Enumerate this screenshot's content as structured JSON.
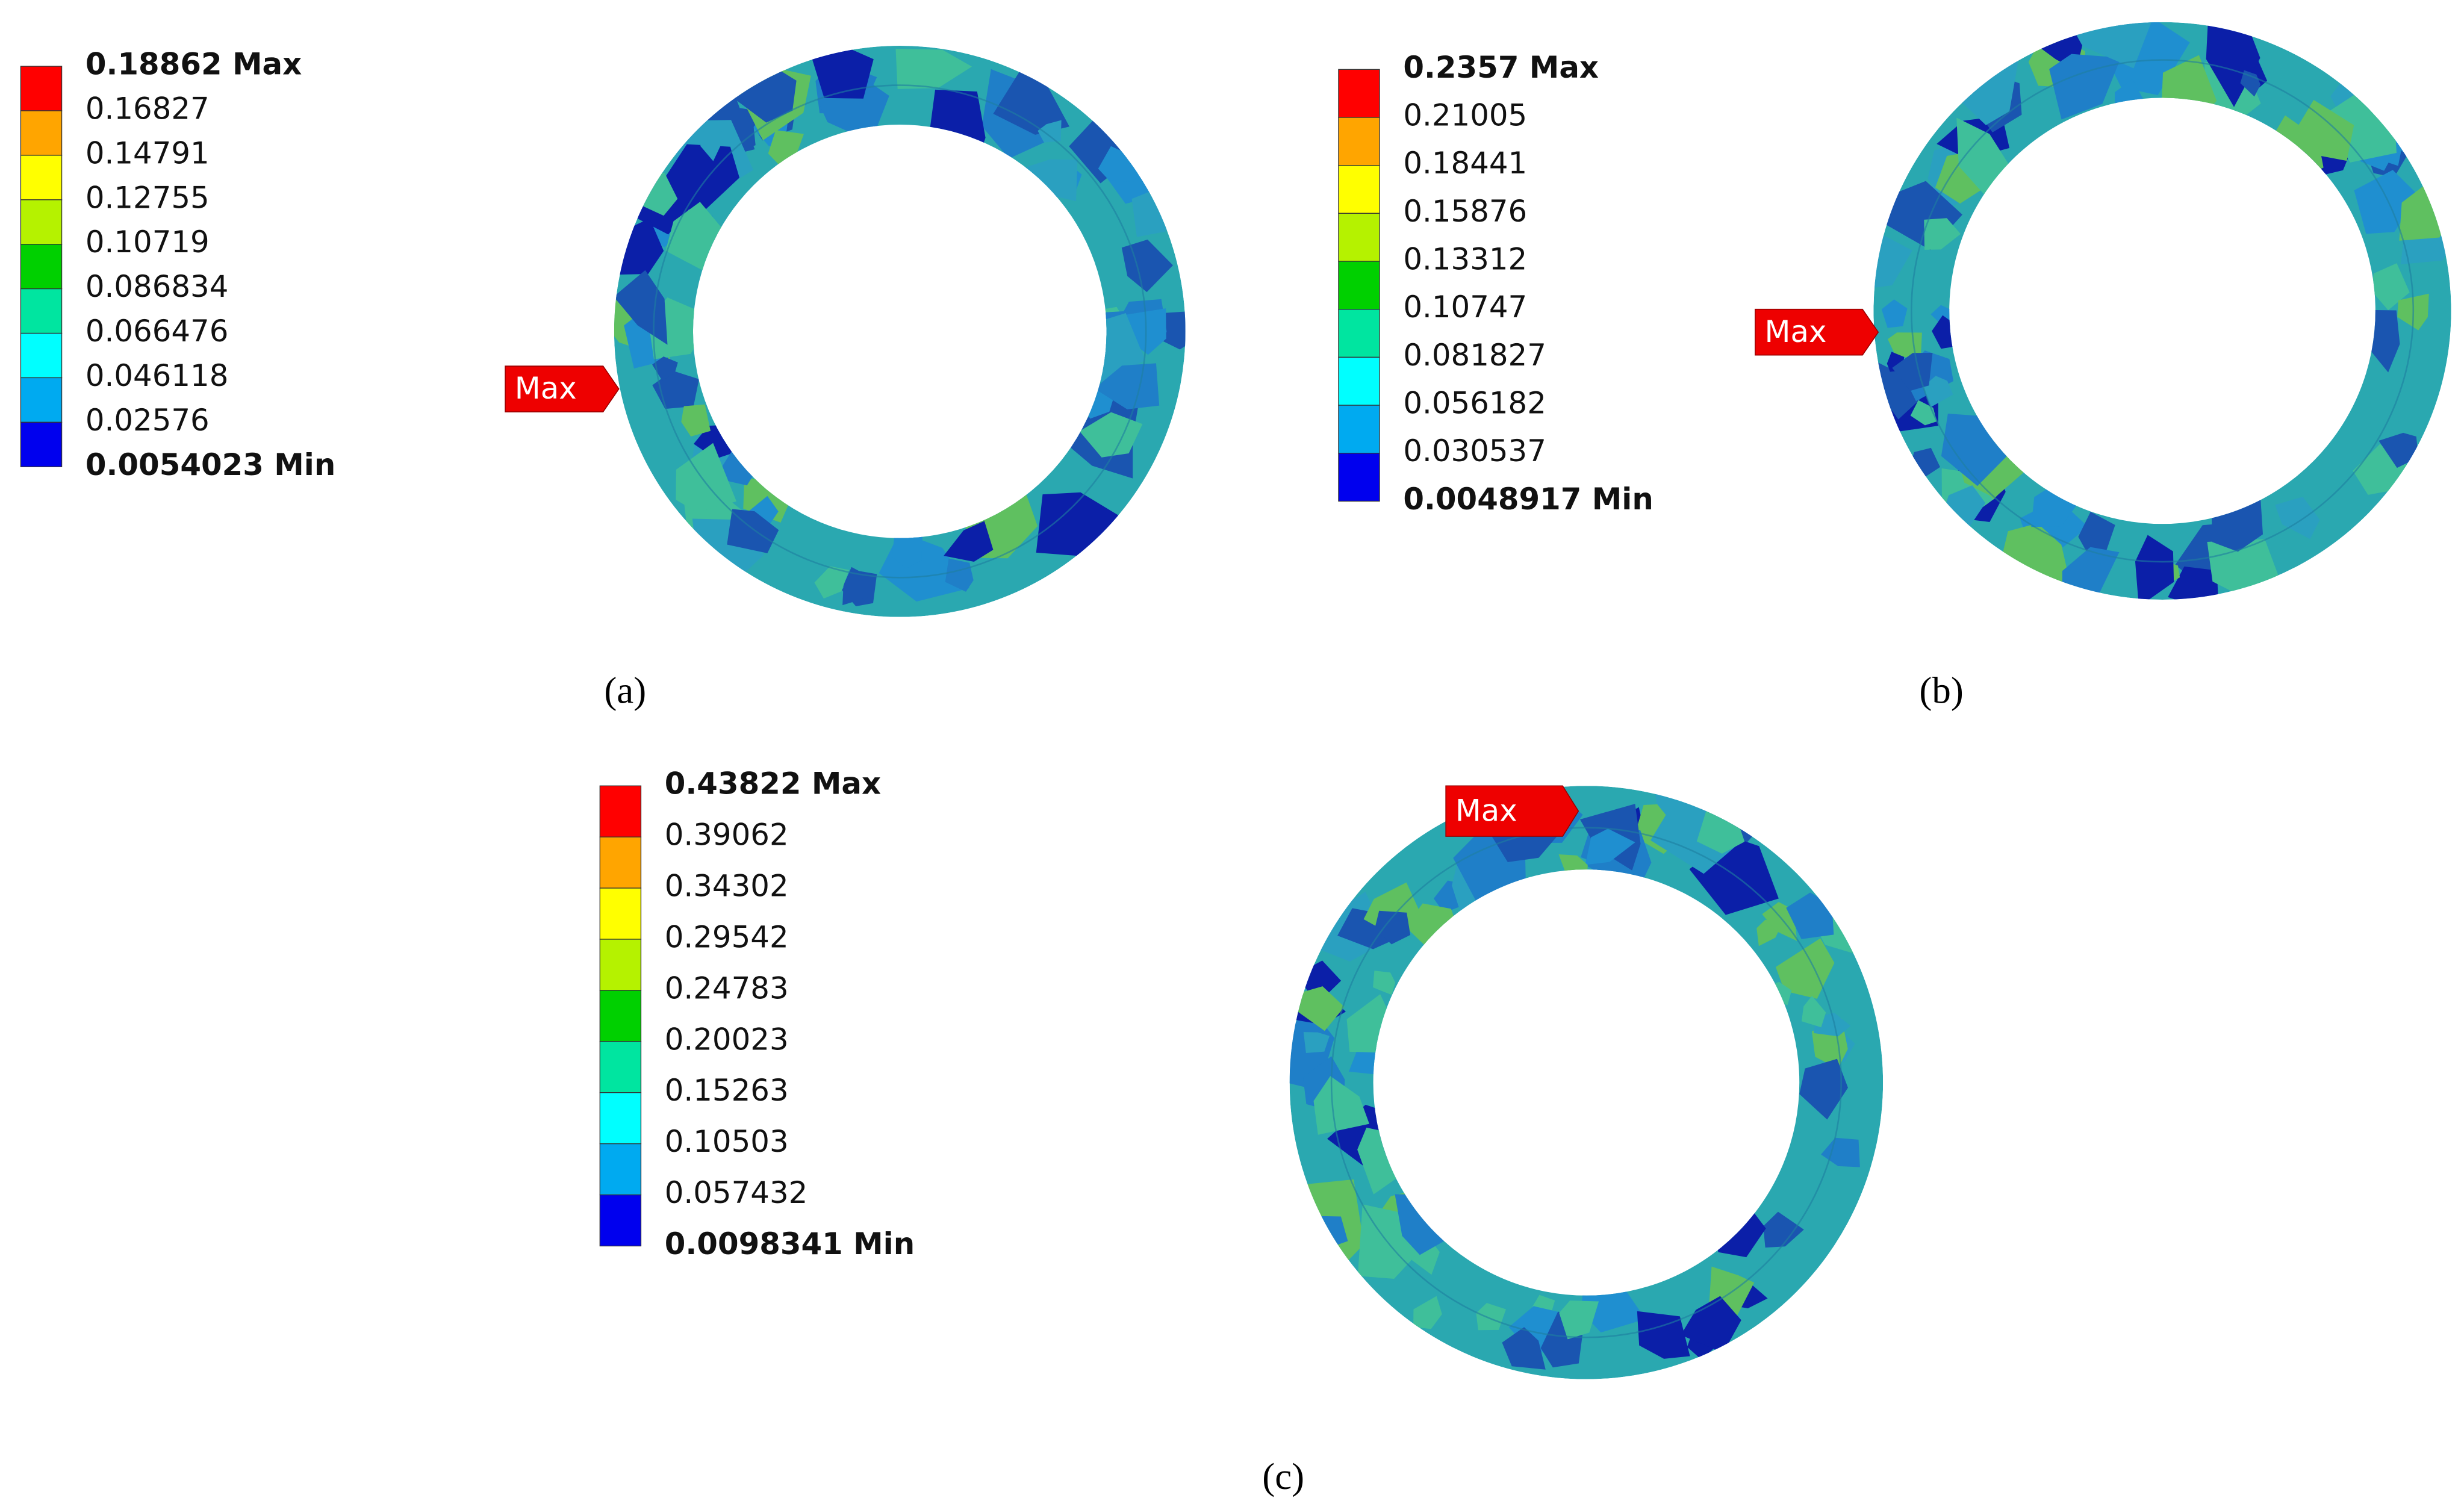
{
  "panels": [
    {
      "legend": [
        "0.18862 Max",
        "0.16827",
        "0.14791",
        "0.12755",
        "0.10719",
        "0.086834",
        "0.066476",
        "0.046118",
        "0.02576",
        "0.0054023 Min"
      ],
      "max_marker": "Max",
      "caption": "(a)"
    },
    {
      "legend": [
        "0.2357 Max",
        "0.21005",
        "0.18441",
        "0.15876",
        "0.13312",
        "0.10747",
        "0.081827",
        "0.056182",
        "0.030537",
        "0.0048917 Min"
      ],
      "max_marker": "Max",
      "caption": "(b)"
    },
    {
      "legend": [
        "0.43822 Max",
        "0.39062",
        "0.34302",
        "0.29542",
        "0.24783",
        "0.20023",
        "0.15263",
        "0.10503",
        "0.057432",
        "0.0098341 Min"
      ],
      "max_marker": "Max",
      "caption": "(c)"
    }
  ]
}
